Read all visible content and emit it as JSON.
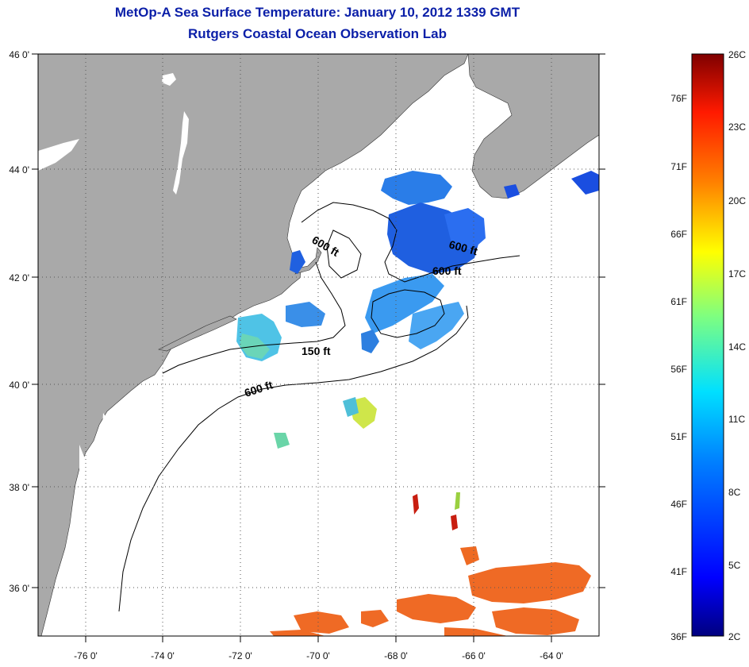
{
  "header": {
    "title": "MetOp-A Sea Surface Temperature:  January 10, 2012 1339 GMT",
    "subtitle": "Rutgers Coastal Ocean Observation Lab"
  },
  "axes": {
    "lon_labels": [
      "-76 0'",
      "-74 0'",
      "-72 0'",
      "-70 0'",
      "-68 0'",
      "-66 0'",
      "-64 0'"
    ],
    "lat_labels": [
      "46 0'",
      "44 0'",
      "42 0'",
      "40 0'",
      "38 0'",
      "36 0'"
    ]
  },
  "contour_labels": [
    "600 ft",
    "600 ft",
    "600 ft",
    "150 ft",
    "600 ft"
  ],
  "colorbar": {
    "fahrenheit": [
      "76F",
      "71F",
      "66F",
      "61F",
      "56F",
      "51F",
      "46F",
      "41F",
      "36F"
    ],
    "celsius": [
      "26C",
      "23C",
      "20C",
      "17C",
      "14C",
      "11C",
      "8C",
      "5C",
      "2C"
    ]
  },
  "colors": {
    "land": "#a9a9a9",
    "title": "#0b1fa8",
    "ocean": "#ffffff"
  }
}
